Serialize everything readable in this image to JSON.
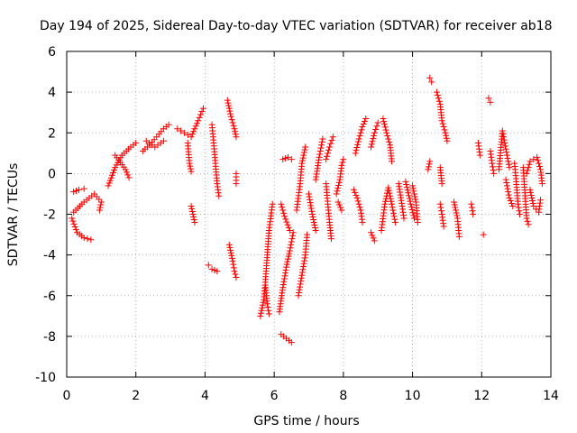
{
  "chart_data": {
    "type": "scatter",
    "title": "Day 194 of 2025, Sidereal Day-to-day VTEC variation (SDTVAR) for receiver ab18",
    "xlabel": "GPS time / hours",
    "ylabel": "SDTVAR / TECUs",
    "xlim": [
      0,
      14
    ],
    "ylim": [
      -10,
      6
    ],
    "xticks": [
      "0",
      "2",
      "4",
      "6",
      "8",
      "10",
      "12",
      "14"
    ],
    "yticks": [
      "6",
      "4",
      "2",
      "0",
      "-2",
      "-4",
      "-6",
      "-8",
      "-10"
    ],
    "grid": true,
    "marker": "+",
    "color": "#ff0000",
    "series": [
      {
        "name": "SDTVAR",
        "segments": [
          [
            [
              0.15,
              -2.2
            ],
            [
              0.3,
              -2.9
            ],
            [
              0.5,
              -3.15
            ],
            [
              0.7,
              -3.25
            ]
          ],
          [
            [
              0.2,
              -1.9
            ],
            [
              0.5,
              -1.4
            ],
            [
              0.8,
              -1.0
            ],
            [
              1.0,
              -1.4
            ],
            [
              0.95,
              -1.8
            ]
          ],
          [
            [
              0.2,
              -0.9
            ],
            [
              0.35,
              -0.8
            ],
            [
              0.5,
              -0.75
            ]
          ],
          [
            [
              1.2,
              -0.6
            ],
            [
              1.4,
              0.3
            ],
            [
              1.6,
              0.9
            ],
            [
              1.85,
              1.3
            ],
            [
              2.0,
              1.5
            ]
          ],
          [
            [
              1.4,
              0.9
            ],
            [
              1.7,
              0.2
            ],
            [
              1.8,
              -0.2
            ]
          ],
          [
            [
              2.2,
              1.1
            ],
            [
              2.4,
              1.4
            ],
            [
              2.6,
              1.8
            ],
            [
              2.8,
              2.2
            ],
            [
              2.95,
              2.4
            ]
          ],
          [
            [
              2.3,
              1.6
            ],
            [
              2.55,
              1.3
            ],
            [
              2.8,
              1.6
            ]
          ],
          [
            [
              3.2,
              2.2
            ],
            [
              3.4,
              2.0
            ],
            [
              3.6,
              1.8
            ],
            [
              3.8,
              2.6
            ],
            [
              3.95,
              3.2
            ]
          ],
          [
            [
              3.5,
              1.5
            ],
            [
              3.55,
              0.5
            ],
            [
              3.6,
              0.1
            ]
          ],
          [
            [
              3.6,
              -1.6
            ],
            [
              3.65,
              -2.0
            ],
            [
              3.7,
              -2.4
            ]
          ],
          [
            [
              4.2,
              2.4
            ],
            [
              4.25,
              1.5
            ],
            [
              4.3,
              0.5
            ],
            [
              4.35,
              -0.5
            ],
            [
              4.4,
              -1.1
            ]
          ],
          [
            [
              4.1,
              -4.5
            ],
            [
              4.2,
              -4.7
            ],
            [
              4.35,
              -4.8
            ]
          ],
          [
            [
              4.7,
              -3.5
            ],
            [
              4.8,
              -4.3
            ],
            [
              4.85,
              -4.8
            ],
            [
              4.9,
              -5.1
            ]
          ],
          [
            [
              4.65,
              3.6
            ],
            [
              4.75,
              2.8
            ],
            [
              4.85,
              2.2
            ],
            [
              4.9,
              1.8
            ]
          ],
          [
            [
              4.9,
              0.0
            ],
            [
              4.9,
              -0.5
            ]
          ],
          [
            [
              5.6,
              -7.0
            ],
            [
              5.7,
              -6.2
            ],
            [
              5.75,
              -5.2
            ],
            [
              5.8,
              -4.0
            ],
            [
              5.85,
              -2.8
            ],
            [
              5.95,
              -1.5
            ]
          ],
          [
            [
              5.75,
              -5.6
            ],
            [
              5.8,
              -6.4
            ],
            [
              5.85,
              -6.9
            ]
          ],
          [
            [
              6.15,
              -6.8
            ],
            [
              6.25,
              -5.6
            ],
            [
              6.35,
              -4.6
            ],
            [
              6.45,
              -3.8
            ],
            [
              6.55,
              -2.9
            ]
          ],
          [
            [
              6.2,
              -7.9
            ],
            [
              6.35,
              -8.1
            ],
            [
              6.5,
              -8.3
            ]
          ],
          [
            [
              6.25,
              0.7
            ],
            [
              6.4,
              0.8
            ],
            [
              6.5,
              0.7
            ]
          ],
          [
            [
              6.2,
              -1.5
            ],
            [
              6.3,
              -2.1
            ],
            [
              6.45,
              -2.8
            ]
          ],
          [
            [
              6.7,
              -6.0
            ],
            [
              6.8,
              -5.0
            ],
            [
              6.9,
              -4.0
            ],
            [
              6.95,
              -3.0
            ]
          ],
          [
            [
              6.65,
              -1.8
            ],
            [
              6.75,
              -0.5
            ],
            [
              6.8,
              0.5
            ],
            [
              6.9,
              1.3
            ]
          ],
          [
            [
              7.0,
              -1.0
            ],
            [
              7.1,
              -2.0
            ],
            [
              7.2,
              -2.8
            ]
          ],
          [
            [
              7.2,
              -0.3
            ],
            [
              7.3,
              0.8
            ],
            [
              7.4,
              1.7
            ]
          ],
          [
            [
              7.5,
              -0.5
            ],
            [
              7.55,
              -1.5
            ],
            [
              7.6,
              -2.4
            ],
            [
              7.65,
              -3.2
            ]
          ],
          [
            [
              7.5,
              0.7
            ],
            [
              7.6,
              1.3
            ],
            [
              7.7,
              1.8
            ]
          ],
          [
            [
              7.8,
              -1.0
            ],
            [
              7.9,
              -0.3
            ],
            [
              7.95,
              0.4
            ],
            [
              8.0,
              0.7
            ]
          ],
          [
            [
              7.85,
              -1.4
            ],
            [
              7.95,
              -1.8
            ]
          ],
          [
            [
              8.3,
              -0.8
            ],
            [
              8.4,
              -1.2
            ],
            [
              8.5,
              -1.8
            ],
            [
              8.55,
              -2.4
            ]
          ],
          [
            [
              8.35,
              1.0
            ],
            [
              8.45,
              1.7
            ],
            [
              8.55,
              2.3
            ],
            [
              8.65,
              2.7
            ]
          ],
          [
            [
              8.8,
              -2.9
            ],
            [
              8.9,
              -3.3
            ]
          ],
          [
            [
              8.8,
              1.3
            ],
            [
              8.9,
              2.0
            ],
            [
              9.0,
              2.5
            ]
          ],
          [
            [
              9.15,
              2.7
            ],
            [
              9.25,
              2.0
            ],
            [
              9.35,
              1.4
            ],
            [
              9.4,
              0.6
            ]
          ],
          [
            [
              9.1,
              -2.8
            ],
            [
              9.2,
              -1.5
            ],
            [
              9.3,
              -0.7
            ],
            [
              9.4,
              -1.5
            ],
            [
              9.5,
              -2.4
            ]
          ],
          [
            [
              9.6,
              -0.5
            ],
            [
              9.7,
              -1.6
            ],
            [
              9.75,
              -2.2
            ]
          ],
          [
            [
              9.8,
              -0.4
            ],
            [
              9.95,
              -1.5
            ],
            [
              10.05,
              -2.2
            ]
          ],
          [
            [
              10.0,
              -0.6
            ],
            [
              10.1,
              -1.4
            ],
            [
              10.15,
              -2.4
            ]
          ],
          [
            [
              10.5,
              4.7
            ],
            [
              10.55,
              4.5
            ]
          ],
          [
            [
              10.45,
              0.2
            ],
            [
              10.5,
              0.6
            ]
          ],
          [
            [
              10.7,
              4.0
            ],
            [
              10.8,
              3.4
            ],
            [
              10.85,
              2.6
            ],
            [
              10.95,
              2.0
            ],
            [
              11.0,
              1.6
            ]
          ],
          [
            [
              10.8,
              0.3
            ],
            [
              10.85,
              -0.5
            ]
          ],
          [
            [
              10.8,
              -1.5
            ],
            [
              10.85,
              -2.0
            ],
            [
              10.9,
              -2.6
            ]
          ],
          [
            [
              11.2,
              -1.4
            ],
            [
              11.3,
              -2.2
            ],
            [
              11.35,
              -3.1
            ]
          ],
          [
            [
              11.7,
              -1.5
            ],
            [
              11.75,
              -2.0
            ]
          ],
          [
            [
              11.9,
              1.5
            ],
            [
              11.95,
              0.9
            ]
          ],
          [
            [
              12.05,
              -3.0
            ]
          ],
          [
            [
              12.2,
              3.7
            ],
            [
              12.25,
              3.5
            ]
          ],
          [
            [
              12.25,
              1.1
            ],
            [
              12.3,
              0.5
            ],
            [
              12.35,
              0.0
            ]
          ],
          [
            [
              12.5,
              0.2
            ],
            [
              12.6,
              2.1
            ],
            [
              12.7,
              1.2
            ],
            [
              12.8,
              0.3
            ]
          ],
          [
            [
              12.7,
              -0.3
            ],
            [
              12.8,
              -1.2
            ],
            [
              12.9,
              -1.6
            ]
          ],
          [
            [
              12.95,
              0.5
            ],
            [
              13.0,
              -0.4
            ],
            [
              13.05,
              -1.5
            ],
            [
              13.1,
              -2.0
            ]
          ],
          [
            [
              13.2,
              0.3
            ],
            [
              13.3,
              -2.2
            ],
            [
              13.35,
              -2.5
            ]
          ],
          [
            [
              13.3,
              0.0
            ],
            [
              13.4,
              0.6
            ],
            [
              13.6,
              0.8
            ],
            [
              13.7,
              0.2
            ],
            [
              13.75,
              -0.5
            ]
          ],
          [
            [
              13.4,
              -0.8
            ],
            [
              13.5,
              -1.6
            ],
            [
              13.65,
              -1.9
            ],
            [
              13.7,
              -1.3
            ]
          ]
        ]
      }
    ]
  }
}
